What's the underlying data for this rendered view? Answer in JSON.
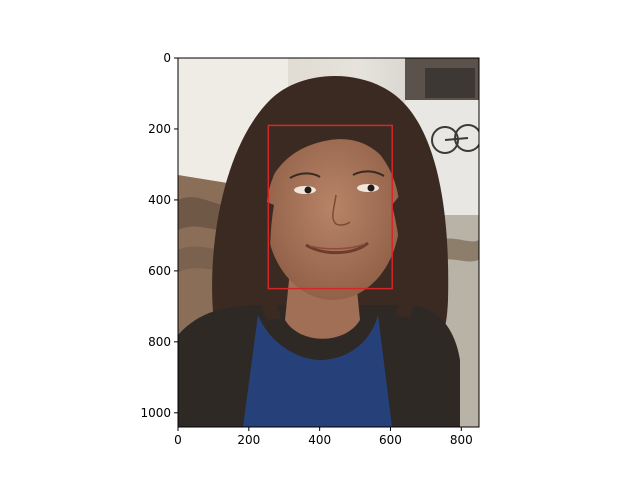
{
  "chart_data": {
    "type": "image",
    "image_subject": "photo of a smiling woman with long dark hair, blue top and dark cardigan, outdoors",
    "x_ticks": [
      0,
      200,
      400,
      600,
      800
    ],
    "y_ticks": [
      0,
      200,
      400,
      600,
      800,
      1000
    ],
    "x_range": [
      0,
      850
    ],
    "y_range": [
      1040,
      0
    ],
    "box": {
      "x0": 255,
      "y0": 190,
      "x1": 605,
      "y1": 650,
      "color": "#d62728"
    }
  }
}
